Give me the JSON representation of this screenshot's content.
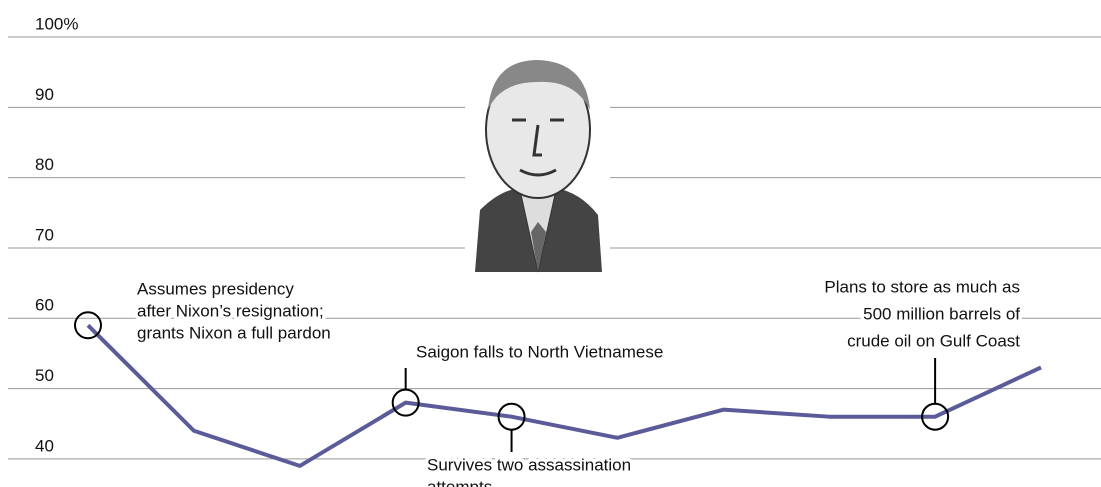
{
  "chart_data": {
    "type": "line",
    "values": [
      59,
      44,
      39,
      48,
      46,
      43,
      47,
      46,
      46,
      53
    ],
    "color": "#5b5b99",
    "ylim": [
      36,
      100
    ],
    "yticks": [
      40,
      50,
      60,
      70,
      80,
      90,
      {
        "value": 100,
        "label": "100%"
      }
    ],
    "grid": true,
    "annotations": [
      {
        "lines": [
          "Assumes presidency",
          "after Nixon’s resignation;",
          "grants Nixon a full pardon"
        ]
      },
      {
        "lines": [
          "Saigon falls to North Vietnamese"
        ]
      },
      {
        "lines": [
          "Survives two assassination",
          "attempts"
        ]
      },
      {
        "lines": [
          "Plans to store as much as",
          "500 million barrels of",
          "crude oil on Gulf Coast"
        ]
      }
    ]
  }
}
